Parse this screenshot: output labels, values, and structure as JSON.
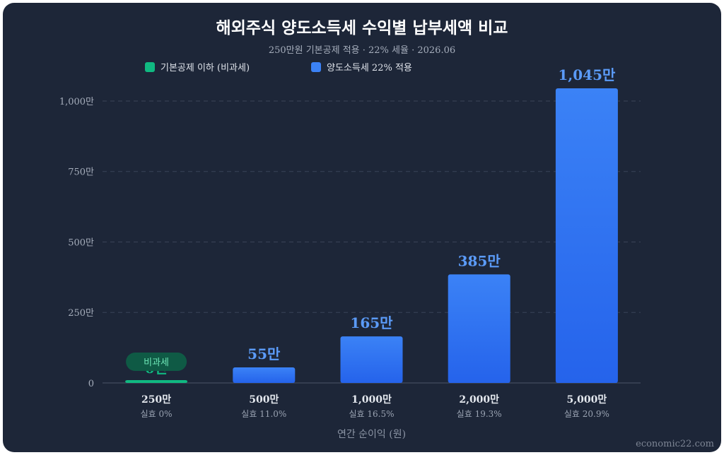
{
  "chart_data": {
    "type": "bar",
    "title": "해외주식 양도소득세 수익별 납부세액 비교",
    "subtitle": "250만원 기본공제 적용 · 22% 세율 · 2026.06",
    "xlabel": "연간 순이익 (원)",
    "ylabel": "",
    "ylim": [
      0,
      1045
    ],
    "yticks": [
      "0",
      "250만",
      "500만",
      "750만",
      "1,000만"
    ],
    "ytick_values": [
      0,
      250,
      500,
      750,
      1000
    ],
    "categories": [
      "250만",
      "500만",
      "1,000만",
      "2,000만",
      "5,000만"
    ],
    "sublabels": [
      "실효 0%",
      "실효 11.0%",
      "실효 16.5%",
      "실효 19.3%",
      "실효 20.9%"
    ],
    "values": [
      0,
      55,
      165,
      385,
      1045
    ],
    "value_labels": [
      "0만",
      "55만",
      "165만",
      "385만",
      "1,045만"
    ],
    "series_index": [
      0,
      1,
      1,
      1,
      1
    ],
    "legend": [
      {
        "name": "기본공제 이하 (비과세)",
        "color": "#10b981"
      },
      {
        "name": "양도소득세 22% 적용",
        "color": "#3b82f6"
      }
    ],
    "badge": "비과세",
    "grid": true,
    "legend_position": "top-left"
  },
  "colors": {
    "background": "#1d2638",
    "bar_blue_top": "#3b82f6",
    "bar_blue_bottom": "#2563eb",
    "bar_green": "#10b981",
    "value_label_blue": "#5b9bf8",
    "badge_bg": "#0f5a45",
    "badge_text": "#6ee7b7",
    "grid": "#3a4458"
  },
  "watermark": "economic22.com"
}
